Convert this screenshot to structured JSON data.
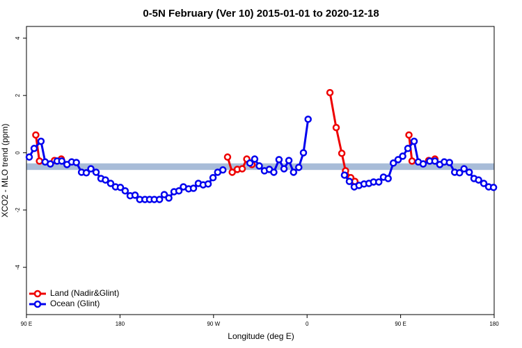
{
  "chart_data": {
    "type": "line",
    "title": "0-5N February (Ver 10)   2015-01-01 to 2020-12-18",
    "x_label": "Longitude (deg E)",
    "y_label": "XCO2 - MLO trend (ppm)",
    "xlim": [
      90,
      540
    ],
    "ylim": [
      -5.65,
      4.41
    ],
    "xticks": [
      {
        "value": 90,
        "label": "90 E"
      },
      180,
      {
        "value": 270,
        "label": "90 W"
      },
      {
        "value": 360,
        "label": "0"
      },
      {
        "value": 450,
        "label": "90 E"
      },
      {
        "value": 540,
        "label": "180"
      }
    ],
    "yticks": [
      4,
      2,
      0,
      -2,
      -4
    ],
    "band": [
      -0.6,
      -0.37
    ],
    "band_color": "#a8bcd8",
    "legend": "bottom-left",
    "series": [
      {
        "name": "Land (Nadir&Glint)",
        "color": "#ee0000",
        "x": [
          99,
          102.5,
          null,
          117,
          123.5,
          null,
          283.5,
          288,
          292.9,
          297.6,
          302,
          307,
          null,
          382,
          388,
          393.4,
          397,
          402,
          406,
          null,
          458,
          461,
          null,
          477,
          483
        ],
        "values": [
          0.62,
          -0.29,
          null,
          -0.27,
          -0.22,
          null,
          -0.15,
          -0.68,
          -0.58,
          -0.56,
          -0.22,
          -0.41,
          null,
          2.1,
          0.88,
          -0.02,
          -0.63,
          -0.87,
          -1.0,
          null,
          0.62,
          -0.29,
          null,
          -0.27,
          -0.22
        ]
      },
      {
        "name": "Ocean (Glint)",
        "color": "#0000ee",
        "x": [
          92.7,
          97.4,
          104,
          108,
          113,
          119.5,
          124,
          129,
          133.5,
          138,
          143,
          147.6,
          152,
          157,
          161.7,
          166,
          171,
          175.7,
          180.4,
          185,
          189.8,
          194.5,
          199,
          204,
          208.5,
          213,
          218,
          222.6,
          227,
          232,
          236.7,
          241,
          246,
          250.7,
          255.4,
          260,
          264.8,
          269.5,
          274,
          279,
          null,
          305,
          309.6,
          314,
          319,
          323.7,
          328,
          333,
          337.8,
          342.5,
          347,
          352,
          356.5,
          361,
          null,
          396,
          400.7,
          405.4,
          410,
          414.8,
          419.5,
          424,
          429,
          433.5,
          438,
          443,
          447.6,
          452,
          457,
          463,
          467,
          471.7,
          478,
          483,
          487.7,
          492,
          497,
          502,
          506.7,
          511,
          516,
          520.6,
          525,
          530,
          534.7,
          539.4
        ],
        "values": [
          -0.15,
          0.15,
          0.4,
          -0.32,
          -0.39,
          -0.29,
          -0.29,
          -0.41,
          -0.32,
          -0.34,
          -0.68,
          -0.7,
          -0.56,
          -0.68,
          -0.9,
          -0.95,
          -1.07,
          -1.19,
          -1.21,
          -1.33,
          -1.5,
          -1.48,
          -1.63,
          -1.63,
          -1.63,
          -1.63,
          -1.63,
          -1.46,
          -1.58,
          -1.36,
          -1.33,
          -1.19,
          -1.26,
          -1.24,
          -1.07,
          -1.12,
          -1.09,
          -0.87,
          -0.68,
          -0.6,
          null,
          -0.36,
          -0.22,
          -0.46,
          -0.63,
          -0.58,
          -0.68,
          -0.24,
          -0.56,
          -0.27,
          -0.68,
          -0.51,
          0,
          1.17,
          null,
          -0.78,
          -1.0,
          -1.19,
          -1.14,
          -1.09,
          -1.07,
          -1.02,
          -1.02,
          -0.85,
          -0.9,
          -0.36,
          -0.24,
          -0.12,
          0.15,
          0.4,
          -0.32,
          -0.39,
          -0.29,
          -0.29,
          -0.41,
          -0.32,
          -0.34,
          -0.68,
          -0.7,
          -0.56,
          -0.68,
          -0.9,
          -0.95,
          -1.07,
          -1.19,
          -1.21
        ]
      }
    ]
  }
}
